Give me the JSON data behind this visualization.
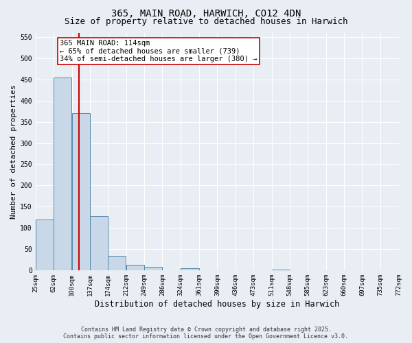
{
  "title": "365, MAIN ROAD, HARWICH, CO12 4DN",
  "subtitle": "Size of property relative to detached houses in Harwich",
  "xlabel": "Distribution of detached houses by size in Harwich",
  "ylabel": "Number of detached properties",
  "footer_line1": "Contains HM Land Registry data © Crown copyright and database right 2025.",
  "footer_line2": "Contains public sector information licensed under the Open Government Licence v3.0.",
  "annotation_line1": "365 MAIN ROAD: 114sqm",
  "annotation_line2": "← 65% of detached houses are smaller (739)",
  "annotation_line3": "34% of semi-detached houses are larger (380) →",
  "bar_left_edges": [
    25,
    62,
    100,
    137,
    174,
    212,
    249,
    286,
    324,
    361,
    399,
    436,
    473,
    511,
    548,
    585,
    623,
    660,
    697,
    735
  ],
  "bar_widths": [
    37,
    37,
    37,
    37,
    37,
    37,
    37,
    37,
    37,
    37,
    37,
    37,
    37,
    37,
    37,
    37,
    37,
    37,
    37,
    37
  ],
  "bar_heights": [
    120,
    455,
    370,
    128,
    35,
    13,
    8,
    0,
    6,
    0,
    0,
    0,
    0,
    2,
    0,
    0,
    0,
    0,
    0,
    0
  ],
  "bar_facecolor": "#c8d8e8",
  "bar_edgecolor": "#5588aa",
  "tick_labels": [
    "25sqm",
    "62sqm",
    "100sqm",
    "137sqm",
    "174sqm",
    "212sqm",
    "249sqm",
    "286sqm",
    "324sqm",
    "361sqm",
    "399sqm",
    "436sqm",
    "473sqm",
    "511sqm",
    "548sqm",
    "585sqm",
    "623sqm",
    "660sqm",
    "697sqm",
    "735sqm",
    "772sqm"
  ],
  "vline_x": 114,
  "vline_color": "#cc0000",
  "annotation_box_edgecolor": "#cc0000",
  "annotation_box_facecolor": "#ffffff",
  "ylim": [
    0,
    560
  ],
  "yticks": [
    0,
    50,
    100,
    150,
    200,
    250,
    300,
    350,
    400,
    450,
    500,
    550
  ],
  "xlim": [
    25,
    772
  ],
  "background_color": "#e8eef4",
  "grid_color": "#ffffff",
  "title_fontsize": 10,
  "subtitle_fontsize": 9,
  "axis_label_fontsize": 8,
  "tick_fontsize": 6.5,
  "footer_fontsize": 6,
  "annotation_fontsize": 7.5
}
